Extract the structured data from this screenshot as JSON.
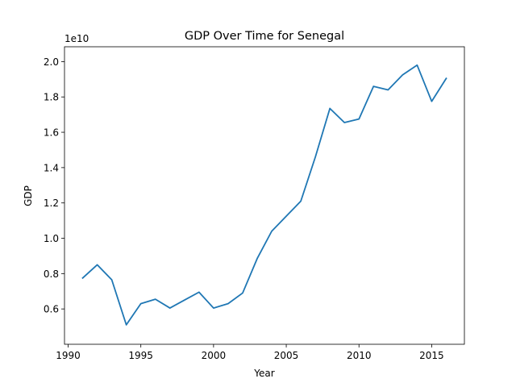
{
  "chart_data": {
    "type": "line",
    "title": "GDP Over Time for Senegal",
    "xlabel": "Year",
    "ylabel": "GDP",
    "y_offset_label": "1e10",
    "x_ticks": [
      1990,
      1995,
      2000,
      2005,
      2010,
      2015
    ],
    "x_tick_labels": [
      "1990",
      "1995",
      "2000",
      "2005",
      "2010",
      "2015"
    ],
    "y_ticks": [
      0.6,
      0.8,
      1.0,
      1.2,
      1.4,
      1.6,
      1.8,
      2.0
    ],
    "y_tick_labels": [
      "0.6",
      "0.8",
      "1.0",
      "1.2",
      "1.4",
      "1.6",
      "1.8",
      "2.0"
    ],
    "xlim": [
      1989.75,
      2017.25
    ],
    "ylim": [
      0.4,
      2.084
    ],
    "grid": false,
    "line_color": "#1f77b4",
    "series": [
      {
        "x": [
          1991,
          1992,
          1993,
          1994,
          1995,
          1996,
          1997,
          1998,
          1999,
          2000,
          2001,
          2002,
          2003,
          2004,
          2005,
          2006,
          2007,
          2008,
          2009,
          2010,
          2011,
          2012,
          2013,
          2014,
          2015,
          2016
        ],
        "values": [
          0.775,
          0.85,
          0.765,
          0.51,
          0.63,
          0.655,
          0.605,
          0.65,
          0.695,
          0.605,
          0.63,
          0.69,
          0.885,
          1.04,
          1.125,
          1.21,
          1.46,
          1.735,
          1.655,
          1.675,
          1.86,
          1.84,
          1.925,
          1.98,
          1.775,
          1.905
        ]
      }
    ]
  }
}
